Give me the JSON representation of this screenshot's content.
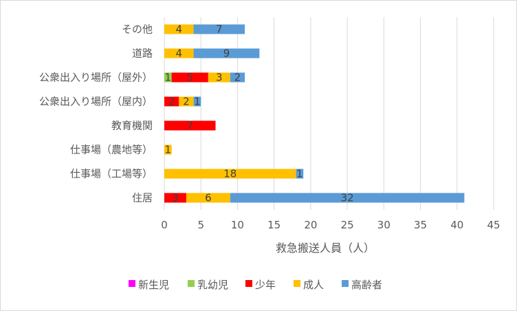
{
  "chart_data": {
    "type": "bar",
    "orientation": "horizontal",
    "stacked": true,
    "categories": [
      "その他",
      "道路",
      "公衆出入り場所（屋外）",
      "公衆出入り場所（屋内）",
      "教育機関",
      "仕事場（農地等）",
      "仕事場（工場等）",
      "住居"
    ],
    "series": [
      {
        "name": "新生児",
        "color": "#ff00ff",
        "values": [
          0,
          0,
          0,
          0,
          0,
          0,
          0,
          0
        ]
      },
      {
        "name": "乳幼児",
        "color": "#92d050",
        "values": [
          0,
          0,
          1,
          0,
          0,
          0,
          0,
          0
        ]
      },
      {
        "name": "少年",
        "color": "#ff0000",
        "values": [
          0,
          0,
          5,
          2,
          7,
          0,
          0,
          3
        ]
      },
      {
        "name": "成人",
        "color": "#ffc000",
        "values": [
          4,
          4,
          3,
          2,
          0,
          1,
          18,
          6
        ]
      },
      {
        "name": "高齢者",
        "color": "#5b9bd5",
        "values": [
          7,
          9,
          2,
          1,
          0,
          0,
          1,
          32
        ]
      }
    ],
    "xlabel": "救急搬送人員（人）",
    "xlim": [
      0,
      45
    ],
    "xticks": [
      0,
      5,
      10,
      15,
      20,
      25,
      30,
      35,
      40,
      45
    ],
    "grid": "vertical",
    "legend_position": "bottom"
  }
}
